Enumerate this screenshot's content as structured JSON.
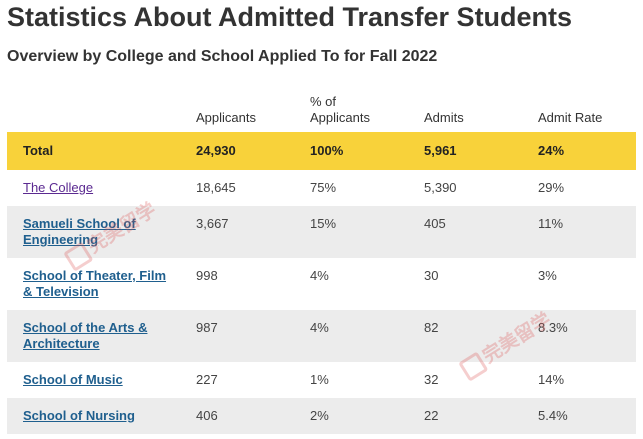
{
  "page": {
    "title": "Statistics About Admitted Transfer Students",
    "subtitle": "Overview by College and School Applied To for Fall 2022"
  },
  "table": {
    "headers": [
      "",
      "Applicants",
      "% of Applicants",
      "Admits",
      "Admit Rate"
    ],
    "total": {
      "label": "Total",
      "applicants": "24,930",
      "pct": "100%",
      "admits": "5,961",
      "rate": "24%"
    },
    "rows": [
      {
        "label": "The College",
        "applicants": "18,645",
        "pct": "75%",
        "admits": "5,390",
        "rate": "29%"
      },
      {
        "label": "Samueli School of Engineering",
        "applicants": "3,667",
        "pct": "15%",
        "admits": "405",
        "rate": "11%"
      },
      {
        "label": "School of Theater, Film & Television",
        "applicants": "998",
        "pct": "4%",
        "admits": "30",
        "rate": "3%"
      },
      {
        "label": "School of the Arts & Architecture",
        "applicants": "987",
        "pct": "4%",
        "admits": "82",
        "rate": "8.3%"
      },
      {
        "label": "School of Music",
        "applicants": "227",
        "pct": "1%",
        "admits": "32",
        "rate": "14%"
      },
      {
        "label": "School of Nursing",
        "applicants": "406",
        "pct": "2%",
        "admits": "22",
        "rate": "5.4%"
      }
    ]
  },
  "watermark": {
    "text": "完美留学"
  },
  "colors": {
    "total_row": "#f8d23a",
    "alt_row": "#ececec",
    "link": "#1f5f8e",
    "visited_link": "#5b2a91"
  }
}
